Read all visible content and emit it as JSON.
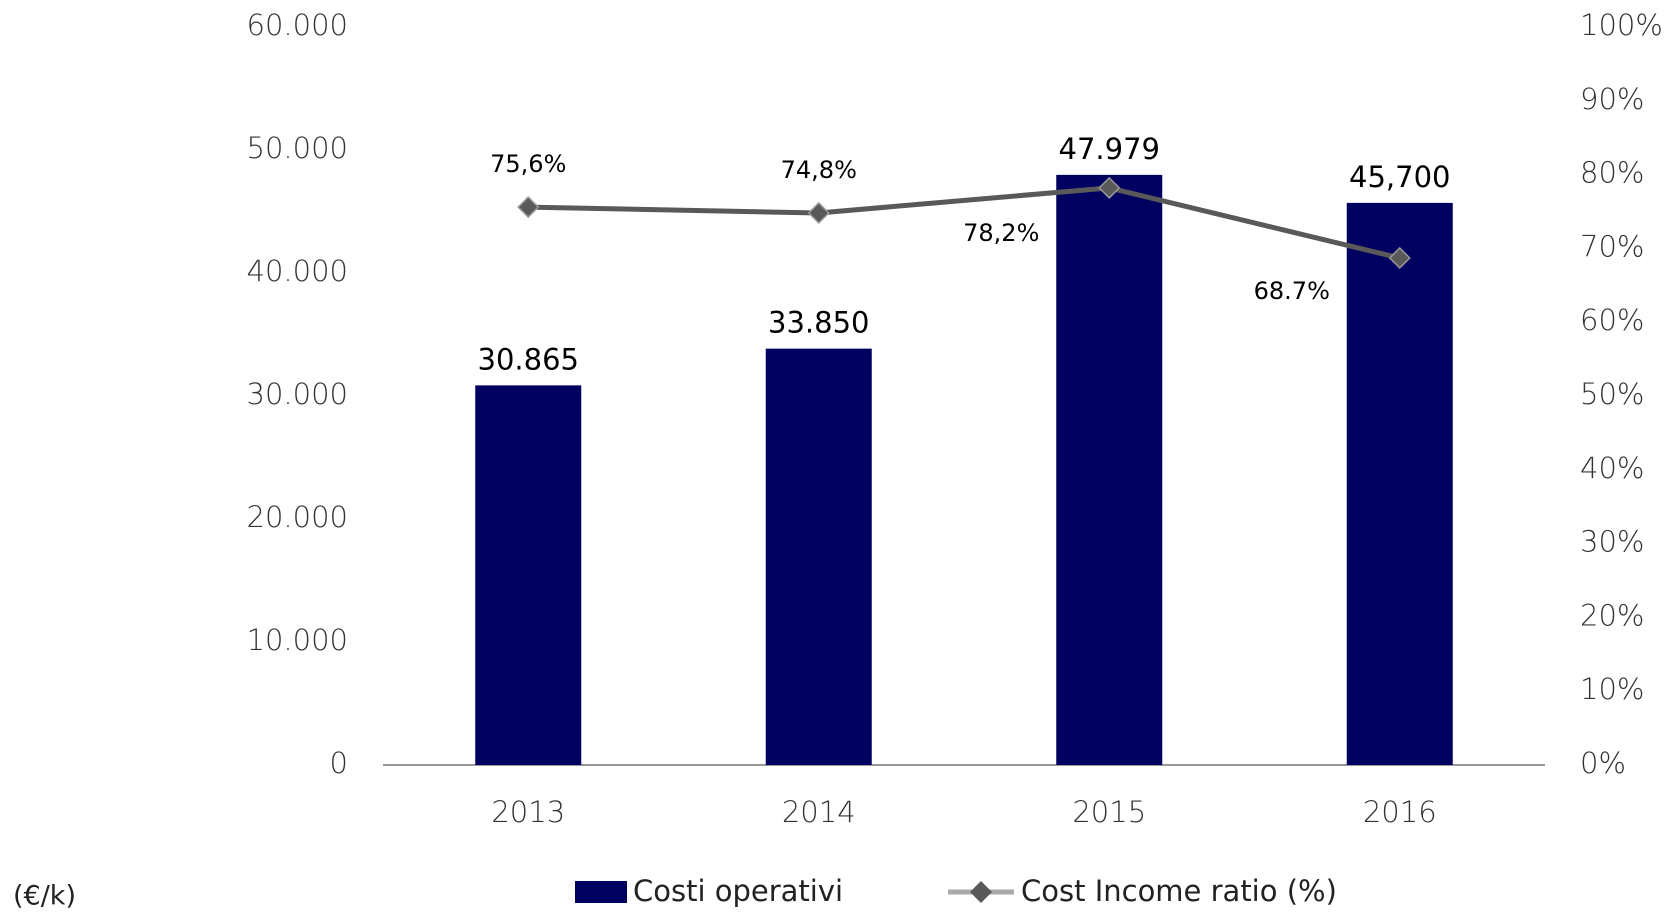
{
  "chart_data": {
    "type": "bar",
    "unit_label": "(€/k)",
    "categories": [
      "2013",
      "2014",
      "2015",
      "2016"
    ],
    "series": [
      {
        "name": "Costi operativi",
        "color": "#000060",
        "type": "bar",
        "values": [
          30865,
          33850,
          47979,
          45700
        ],
        "value_labels": [
          "30.865",
          "33.850",
          "47.979",
          "45,700"
        ]
      },
      {
        "name": "Cost Income ratio (%)",
        "color": "#595959",
        "type": "line",
        "axis": "y2",
        "values": [
          75.6,
          74.8,
          78.2,
          68.7
        ],
        "value_labels": [
          "75,6%",
          "74,8%",
          "78,2%",
          "68.7%"
        ]
      }
    ],
    "ylim": [
      0,
      60000
    ],
    "yticks": [
      0,
      {
        "value": 10000,
        "label": "10.000"
      },
      {
        "value": 20000,
        "label": "20.000"
      },
      {
        "value": 30000,
        "label": "30.000"
      },
      {
        "value": 40000,
        "label": "40.000"
      },
      {
        "value": 50000,
        "label": "50.000"
      },
      {
        "value": 60000,
        "label": "60.000"
      }
    ],
    "y2lim": [
      0,
      100
    ],
    "y2ticks": [
      {
        "value": 0,
        "label": "0%"
      },
      {
        "value": 10,
        "label": "10%"
      },
      {
        "value": 20,
        "label": "20%"
      },
      {
        "value": 30,
        "label": "30%"
      },
      {
        "value": 40,
        "label": "40%"
      },
      {
        "value": 50,
        "label": "50%"
      },
      {
        "value": 60,
        "label": "60%"
      },
      {
        "value": 70,
        "label": "70%"
      },
      {
        "value": 80,
        "label": "80%"
      },
      {
        "value": 90,
        "label": "90%"
      },
      {
        "value": 100,
        "label": "100%"
      }
    ],
    "legend": "bottom"
  }
}
